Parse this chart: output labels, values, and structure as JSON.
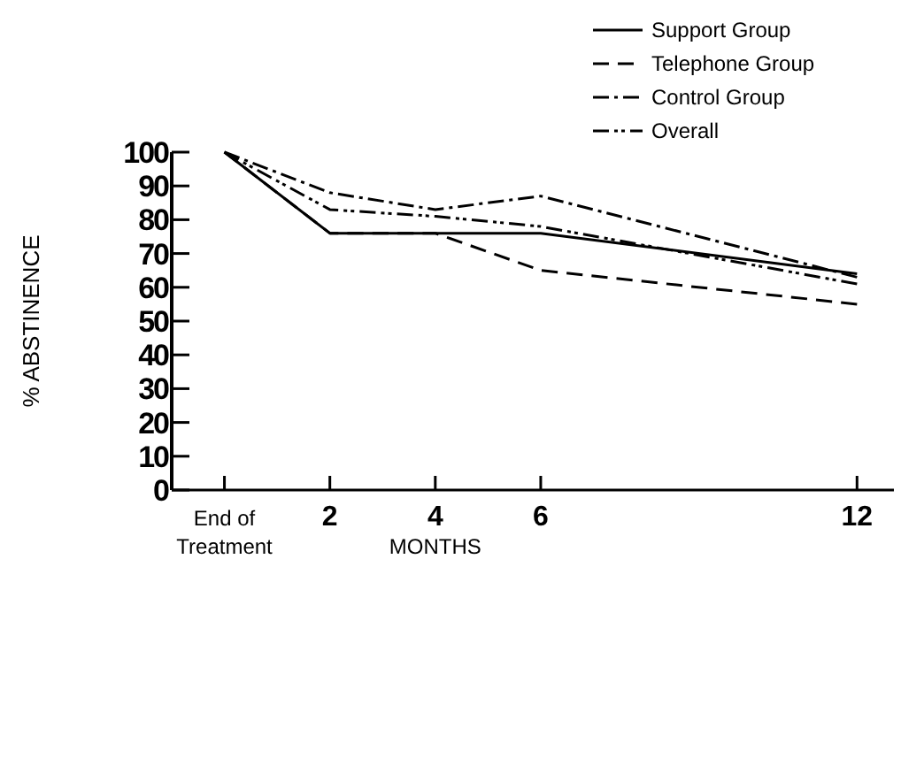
{
  "chart_data": {
    "type": "line",
    "ylabel": "% ABSTINENCE",
    "xlabel": "MONTHS",
    "x": [
      0,
      2,
      4,
      6,
      12
    ],
    "xlim": [
      -1,
      12.7
    ],
    "xticks": [
      {
        "value": 0,
        "label": "End of Treatment"
      },
      2,
      4,
      6,
      12
    ],
    "ylim": [
      0,
      100
    ],
    "yticks": [
      0,
      10,
      20,
      30,
      40,
      50,
      60,
      70,
      80,
      90,
      100
    ],
    "grid": false,
    "legend": "top right",
    "series": [
      {
        "name": "Support Group",
        "color": "#000000",
        "line_style": "solid",
        "values": [
          100,
          76,
          76,
          76,
          64
        ]
      },
      {
        "name": "Telephone Group",
        "color": "#000000",
        "line_style": "dashed",
        "values": [
          100,
          76,
          76,
          65,
          55
        ]
      },
      {
        "name": "Control Group",
        "color": "#000000",
        "line_style": "dashdot",
        "values": [
          100,
          88,
          83,
          87,
          63
        ]
      },
      {
        "name": "Overall",
        "color": "#000000",
        "line_style": "dashdotdot",
        "values": [
          100,
          83,
          81,
          78,
          61
        ]
      }
    ]
  }
}
